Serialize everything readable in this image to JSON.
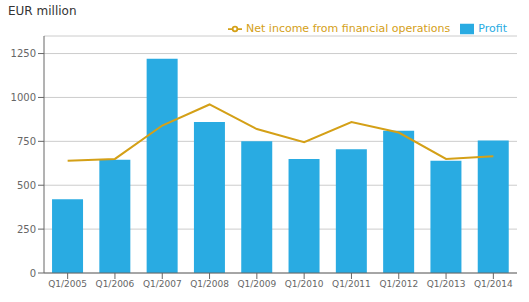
{
  "chart_data": {
    "type": "bar",
    "ylabel": "EUR million",
    "categories": [
      "Q1/2005",
      "Q1/2006",
      "Q1/2007",
      "Q1/2008",
      "Q1/2009",
      "Q1/2010",
      "Q1/2011",
      "Q1/2012",
      "Q1/2013",
      "Q1/2014"
    ],
    "series": [
      {
        "name": "Profit",
        "type": "bar",
        "color": "#29ABE2",
        "values": [
          420,
          645,
          1220,
          860,
          750,
          650,
          705,
          810,
          640,
          755
        ]
      },
      {
        "name": "Net income from financial operations",
        "type": "line",
        "color": "#D4A017",
        "values": [
          640,
          650,
          840,
          960,
          820,
          745,
          860,
          800,
          650,
          665
        ]
      }
    ],
    "ylim": [
      0,
      1350
    ],
    "yticks": [
      0,
      250,
      500,
      750,
      1000,
      1250
    ],
    "grid": true,
    "legend": "upper right"
  }
}
